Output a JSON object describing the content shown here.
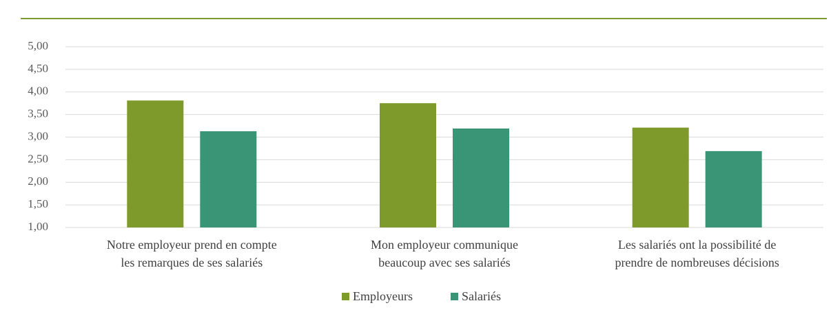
{
  "chart_data": {
    "type": "bar",
    "categories": [
      "Notre employeur prend en compte\nles remarques de ses salariés",
      "Mon employeur communique\nbeaucoup avec ses salariés",
      "Les salariés ont la possibilité de\nprendre de nombreuses décisions"
    ],
    "series": [
      {
        "name": "Employeurs",
        "color": "#7d9a2b",
        "values": [
          3.81,
          3.75,
          3.21
        ]
      },
      {
        "name": "Salariés",
        "color": "#3a9577",
        "values": [
          3.13,
          3.19,
          2.69
        ]
      }
    ],
    "ylim": [
      1,
      5
    ],
    "yticks": [
      {
        "value": 1,
        "label": "1,00"
      },
      {
        "value": 1.5,
        "label": "1,50"
      },
      {
        "value": 2,
        "label": "2,00"
      },
      {
        "value": 2.5,
        "label": "2,50"
      },
      {
        "value": 3,
        "label": "3,00"
      },
      {
        "value": 3.5,
        "label": "3,50"
      },
      {
        "value": 4,
        "label": "4,00"
      },
      {
        "value": 4.5,
        "label": "4,50"
      },
      {
        "value": 5,
        "label": "5,00"
      }
    ],
    "grid": true,
    "legend": "bottom"
  }
}
